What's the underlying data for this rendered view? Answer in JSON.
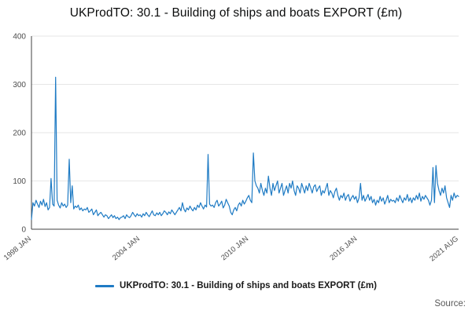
{
  "title": "UKProdTO: 30.1 - Building of ships and boats EXPORT (£m)",
  "legend": {
    "label": "UKProdTO: 30.1 - Building of ships and boats EXPORT (£m)"
  },
  "source": "Source:",
  "colors": {
    "line": "#1f7bc4",
    "grid": "#e6e6e6",
    "axis": "#404040",
    "tick_text": "#4d4d4d"
  },
  "chart_data": {
    "type": "line",
    "title": "UKProdTO: 30.1 - Building of ships and boats EXPORT (£m)",
    "xlabel": "",
    "ylabel": "",
    "ylim": [
      0,
      400
    ],
    "yticks": [
      0,
      100,
      200,
      300,
      400
    ],
    "grid": true,
    "legend_position": "bottom",
    "x_start": "1998-01",
    "x_end": "2021-08",
    "x_ticks": [
      {
        "index": 0,
        "label": "1998 JAN"
      },
      {
        "index": 72,
        "label": "2004 JAN"
      },
      {
        "index": 144,
        "label": "2010 JAN"
      },
      {
        "index": 216,
        "label": "2016 JAN"
      },
      {
        "index": 283,
        "label": "2021 AUG"
      }
    ],
    "series": [
      {
        "name": "UKProdTO: 30.1 - Building of ships and boats EXPORT (£m)",
        "color": "#1f7bc4",
        "values": [
          20,
          55,
          48,
          60,
          52,
          45,
          58,
          50,
          62,
          47,
          55,
          40,
          45,
          105,
          52,
          48,
          315,
          60,
          50,
          44,
          55,
          48,
          52,
          45,
          50,
          145,
          55,
          90,
          42,
          48,
          45,
          50,
          40,
          44,
          38,
          42,
          40,
          45,
          35,
          38,
          42,
          30,
          35,
          40,
          28,
          32,
          35,
          30,
          25,
          30,
          28,
          22,
          26,
          30,
          24,
          28,
          22,
          25,
          20,
          24,
          25,
          28,
          22,
          30,
          26,
          24,
          28,
          35,
          30,
          26,
          32,
          28,
          30,
          25,
          32,
          28,
          35,
          30,
          26,
          32,
          38,
          30,
          28,
          34,
          30,
          35,
          28,
          32,
          38,
          35,
          30,
          36,
          32,
          40,
          35,
          30,
          35,
          40,
          45,
          38,
          55,
          42,
          36,
          44,
          40,
          48,
          42,
          38,
          45,
          40,
          50,
          45,
          55,
          48,
          42,
          50,
          46,
          155,
          52,
          48,
          50,
          45,
          55,
          60,
          48,
          52,
          58,
          44,
          50,
          62,
          55,
          48,
          35,
          30,
          40,
          45,
          38,
          50,
          55,
          48,
          60,
          52,
          58,
          65,
          70,
          60,
          55,
          158,
          100,
          90,
          85,
          75,
          95,
          80,
          70,
          85,
          75,
          110,
          85,
          70,
          95,
          80,
          90,
          100,
          75,
          85,
          95,
          70,
          80,
          90,
          75,
          95,
          85,
          100,
          80,
          70,
          90,
          85,
          75,
          95,
          85,
          75,
          90,
          80,
          95,
          85,
          75,
          88,
          92,
          78,
          85,
          90,
          70,
          80,
          75,
          85,
          95,
          70,
          80,
          75,
          65,
          78,
          85,
          70,
          60,
          70,
          65,
          75,
          60,
          68,
          72,
          58,
          65,
          70,
          62,
          68,
          55,
          65,
          95,
          60,
          70,
          58,
          65,
          72,
          60,
          68,
          55,
          62,
          50,
          60,
          55,
          68,
          58,
          65,
          52,
          60,
          70,
          55,
          62,
          58,
          60,
          55,
          65,
          58,
          70,
          62,
          55,
          65,
          60,
          72,
          58,
          65,
          55,
          65,
          60,
          70,
          62,
          75,
          58,
          68,
          62,
          70,
          65,
          60,
          50,
          60,
          128,
          55,
          132,
          95,
          80,
          70,
          85,
          75,
          90,
          65,
          55,
          45,
          70,
          60,
          75,
          65,
          70,
          68
        ]
      }
    ]
  }
}
